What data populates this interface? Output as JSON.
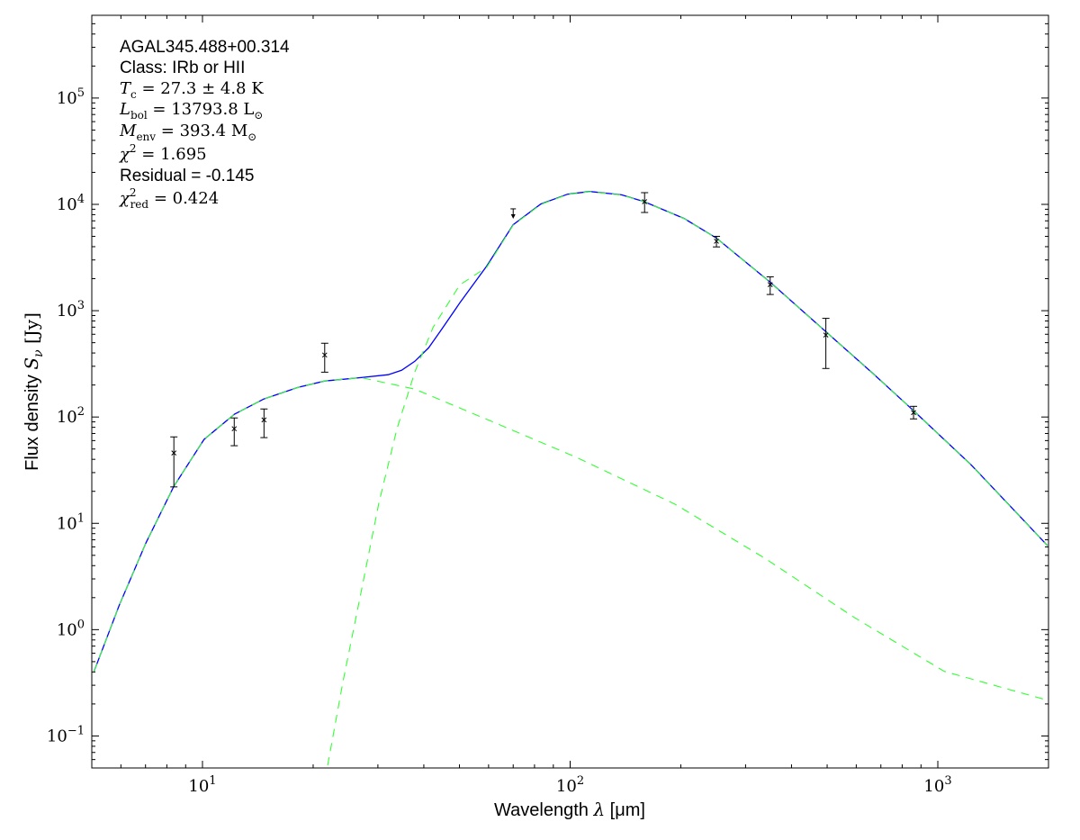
{
  "chart_data": {
    "type": "scatter",
    "xlabel": "Wavelength λ [μm]",
    "ylabel": "Flux density S_ν [Jy]",
    "xlabel_parts": {
      "pre": "Wavelength ",
      "sym": "λ",
      "post": " [μm]"
    },
    "ylabel_parts": {
      "pre": "Flux density ",
      "sym": "S",
      "sub": "ν",
      "post": " [Jy]"
    },
    "xscale": "log",
    "yscale": "log",
    "xlim": [
      5,
      2000
    ],
    "ylim": [
      0.05,
      600000
    ],
    "grid": false,
    "xticks": [
      {
        "base": "10",
        "exp": "1",
        "value": 10
      },
      {
        "base": "10",
        "exp": "2",
        "value": 100
      },
      {
        "base": "10",
        "exp": "3",
        "value": 1000
      }
    ],
    "yticks": [
      {
        "base": "10",
        "exp": "−1",
        "value": 0.1
      },
      {
        "base": "10",
        "exp": "0",
        "value": 1
      },
      {
        "base": "10",
        "exp": "1",
        "value": 10
      },
      {
        "base": "10",
        "exp": "2",
        "value": 100
      },
      {
        "base": "10",
        "exp": "3",
        "value": 1000
      },
      {
        "base": "10",
        "exp": "4",
        "value": 10000
      },
      {
        "base": "10",
        "exp": "5",
        "value": 100000
      }
    ],
    "annotations": [
      {
        "style": "sans",
        "parts": [
          {
            "t": "AGAL345.488+00.314"
          }
        ]
      },
      {
        "style": "sans",
        "parts": [
          {
            "t": "Class: IRb or HII"
          }
        ]
      },
      {
        "style": "math",
        "parts": [
          {
            "t": "T",
            "i": true
          },
          {
            "t": "c",
            "sub": true
          },
          {
            "t": " = 27.3 ± 4.8 K"
          }
        ]
      },
      {
        "style": "math",
        "parts": [
          {
            "t": "L",
            "i": true
          },
          {
            "t": "bol",
            "sub": true
          },
          {
            "t": " = 13793.8 L"
          },
          {
            "t": "⊙",
            "sub": true
          }
        ]
      },
      {
        "style": "math",
        "parts": [
          {
            "t": "M",
            "i": true
          },
          {
            "t": "env",
            "sub": true
          },
          {
            "t": " = 393.4 M"
          },
          {
            "t": "⊙",
            "sub": true
          }
        ]
      },
      {
        "style": "math",
        "parts": [
          {
            "t": "χ",
            "i": true
          },
          {
            "t": "2",
            "sup": true
          },
          {
            "t": " = 1.695"
          }
        ]
      },
      {
        "style": "sans",
        "parts": [
          {
            "t": "Residual = -0.145"
          }
        ]
      },
      {
        "style": "math",
        "parts": [
          {
            "t": "χ",
            "i": true
          },
          {
            "t": "2",
            "sup": true
          },
          {
            "t": "red",
            "sub": true
          },
          {
            "t": " = 0.424"
          }
        ]
      }
    ],
    "data_points": [
      {
        "x": 8.36,
        "y": 45.9,
        "ylo": 22,
        "yhi": 65
      },
      {
        "x": 12.2,
        "y": 77.6,
        "ylo": 53.7,
        "yhi": 98
      },
      {
        "x": 14.7,
        "y": 94,
        "ylo": 64,
        "yhi": 119
      },
      {
        "x": 21.5,
        "y": 383,
        "ylo": 264,
        "yhi": 494
      },
      {
        "x": 70,
        "y": 8560,
        "upper_limit": true
      },
      {
        "x": 159.4,
        "y": 10600,
        "ylo": 8390,
        "yhi": 12880
      },
      {
        "x": 250,
        "y": 4500,
        "ylo": 3980,
        "yhi": 5000
      },
      {
        "x": 350,
        "y": 1758,
        "ylo": 1420,
        "yhi": 2080
      },
      {
        "x": 496,
        "y": 590,
        "ylo": 286,
        "yhi": 847
      },
      {
        "x": 859,
        "y": 110,
        "ylo": 96,
        "yhi": 126
      }
    ],
    "series": [
      {
        "style": "solid",
        "color": "#0000ff",
        "x": [
          5.07,
          5.93,
          7.02,
          8.36,
          10.1,
          12.2,
          14.7,
          18.2,
          21.5,
          27.0,
          32.0,
          34.8,
          37.8,
          41.2,
          44.8,
          50.1,
          59.3,
          70,
          83.2,
          98.4,
          113,
          138,
          159,
          204,
          250,
          350,
          496,
          664,
          859,
          1230,
          1987
        ],
        "y": [
          0.405,
          1.68,
          6.56,
          22.3,
          61.5,
          106,
          148,
          190,
          218,
          235,
          250,
          275,
          334,
          447,
          673,
          1185,
          2630,
          6440,
          10070,
          12470,
          13200,
          12300,
          10600,
          7380,
          4810,
          1850,
          635,
          259,
          114.6,
          35.6,
          6.18
        ]
      },
      {
        "style": "dashed",
        "color": "#33ff33",
        "x": [
          21.9,
          24.1,
          27.0,
          30.2,
          33.8,
          37.8,
          42.4,
          50.1,
          59.3,
          70,
          83.2,
          98.4,
          113,
          138,
          159,
          204,
          250,
          350,
          496,
          664,
          859,
          1230,
          1987
        ],
        "y": [
          0.053,
          0.321,
          2.25,
          15.7,
          77.6,
          265,
          700,
          1750,
          2560,
          6370,
          9980,
          12400,
          13150,
          12250,
          10570,
          7360,
          4800,
          1845,
          633,
          258,
          114.3,
          35.5,
          6.16
        ]
      },
      {
        "style": "dashed",
        "color": "#33ff33",
        "x": [
          5.07,
          5.93,
          7.02,
          8.36,
          10.1,
          12.2,
          14.7,
          18.2,
          21.5,
          27.0,
          37.8,
          66.4,
          104,
          193,
          338,
          593,
          1041,
          1987
        ],
        "y": [
          0.405,
          1.68,
          6.56,
          22.3,
          61.5,
          106,
          148,
          190,
          218,
          235,
          183,
          80.7,
          41.7,
          15.1,
          4.71,
          1.3,
          0.405,
          0.217
        ]
      }
    ]
  }
}
